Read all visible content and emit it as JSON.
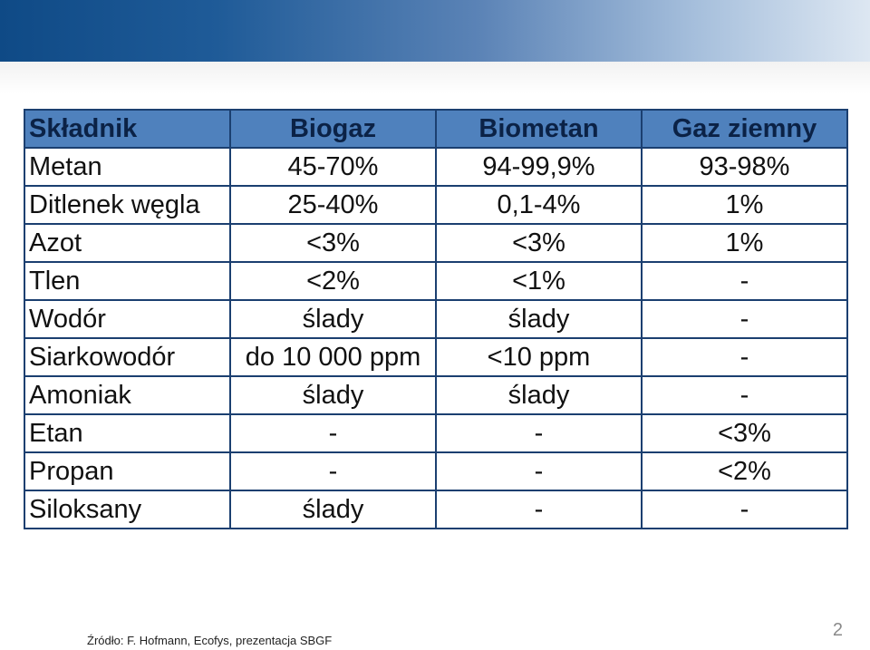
{
  "table": {
    "headers": [
      "Składnik",
      "Biogaz",
      "Biometan",
      "Gaz ziemny"
    ],
    "rows": [
      [
        "Metan",
        "45-70%",
        "94-99,9%",
        "93-98%"
      ],
      [
        "Ditlenek węgla",
        "25-40%",
        "0,1-4%",
        "1%"
      ],
      [
        "Azot",
        "<3%",
        "<3%",
        "1%"
      ],
      [
        "Tlen",
        "<2%",
        "<1%",
        "-"
      ],
      [
        "Wodór",
        "ślady",
        "ślady",
        "-"
      ],
      [
        "Siarkowodór",
        "do 10 000 ppm",
        "<10 ppm",
        "-"
      ],
      [
        "Amoniak",
        "ślady",
        "ślady",
        "-"
      ],
      [
        "Etan",
        "-",
        "-",
        "<3%"
      ],
      [
        "Propan",
        "-",
        "-",
        "<2%"
      ],
      [
        "Siloksany",
        "ślady",
        "-",
        "-"
      ]
    ]
  },
  "footer": {
    "source": "Źródło: F. Hofmann, Ecofys, prezentacja SBGF",
    "page_number": "2"
  },
  "colors": {
    "header_fill": "#4f81bd",
    "border": "#1b3f70",
    "banner_start": "#0f4a86",
    "banner_end": "#dde7f2"
  }
}
